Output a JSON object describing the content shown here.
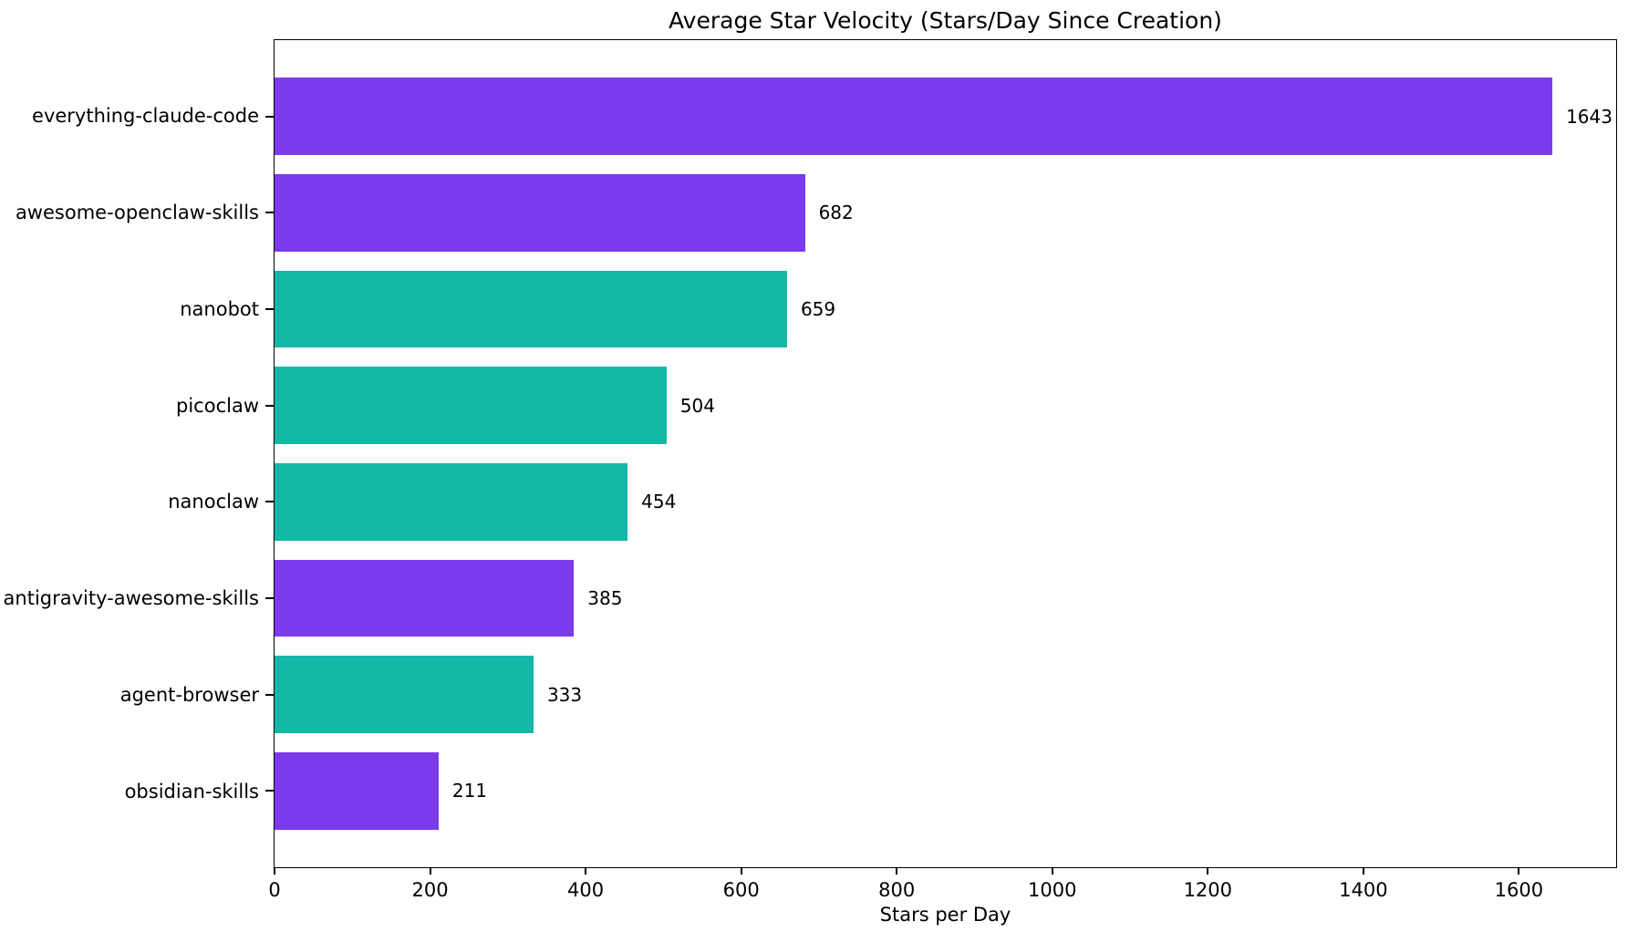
{
  "chart_data": {
    "type": "bar",
    "orientation": "horizontal",
    "title": "Average Star Velocity (Stars/Day Since Creation)",
    "xlabel": "Stars per Day",
    "ylabel": "",
    "categories": [
      "everything-claude-code",
      "awesome-openclaw-skills",
      "nanobot",
      "picoclaw",
      "nanoclaw",
      "antigravity-awesome-skills",
      "agent-browser",
      "obsidian-skills"
    ],
    "values": [
      1643,
      682,
      659,
      504,
      454,
      385,
      333,
      211
    ],
    "value_labels": [
      "1643",
      "682",
      "659",
      "504",
      "454",
      "385",
      "333",
      "211"
    ],
    "bar_colors": [
      "#7c3aed",
      "#7c3aed",
      "#14b8a6",
      "#14b8a6",
      "#14b8a6",
      "#7c3aed",
      "#14b8a6",
      "#7c3aed"
    ],
    "xticks": [
      0,
      200,
      400,
      600,
      800,
      1000,
      1200,
      1400,
      1600
    ],
    "xlim": [
      0,
      1725
    ],
    "grid": false,
    "legend_position": "none",
    "bar_label_color": "#000000"
  },
  "style": {
    "background": "#ffffff",
    "accent_purple": "#7c3aed",
    "accent_teal": "#14b8a6",
    "spine_color": "#000000",
    "text_color": "#000000"
  }
}
